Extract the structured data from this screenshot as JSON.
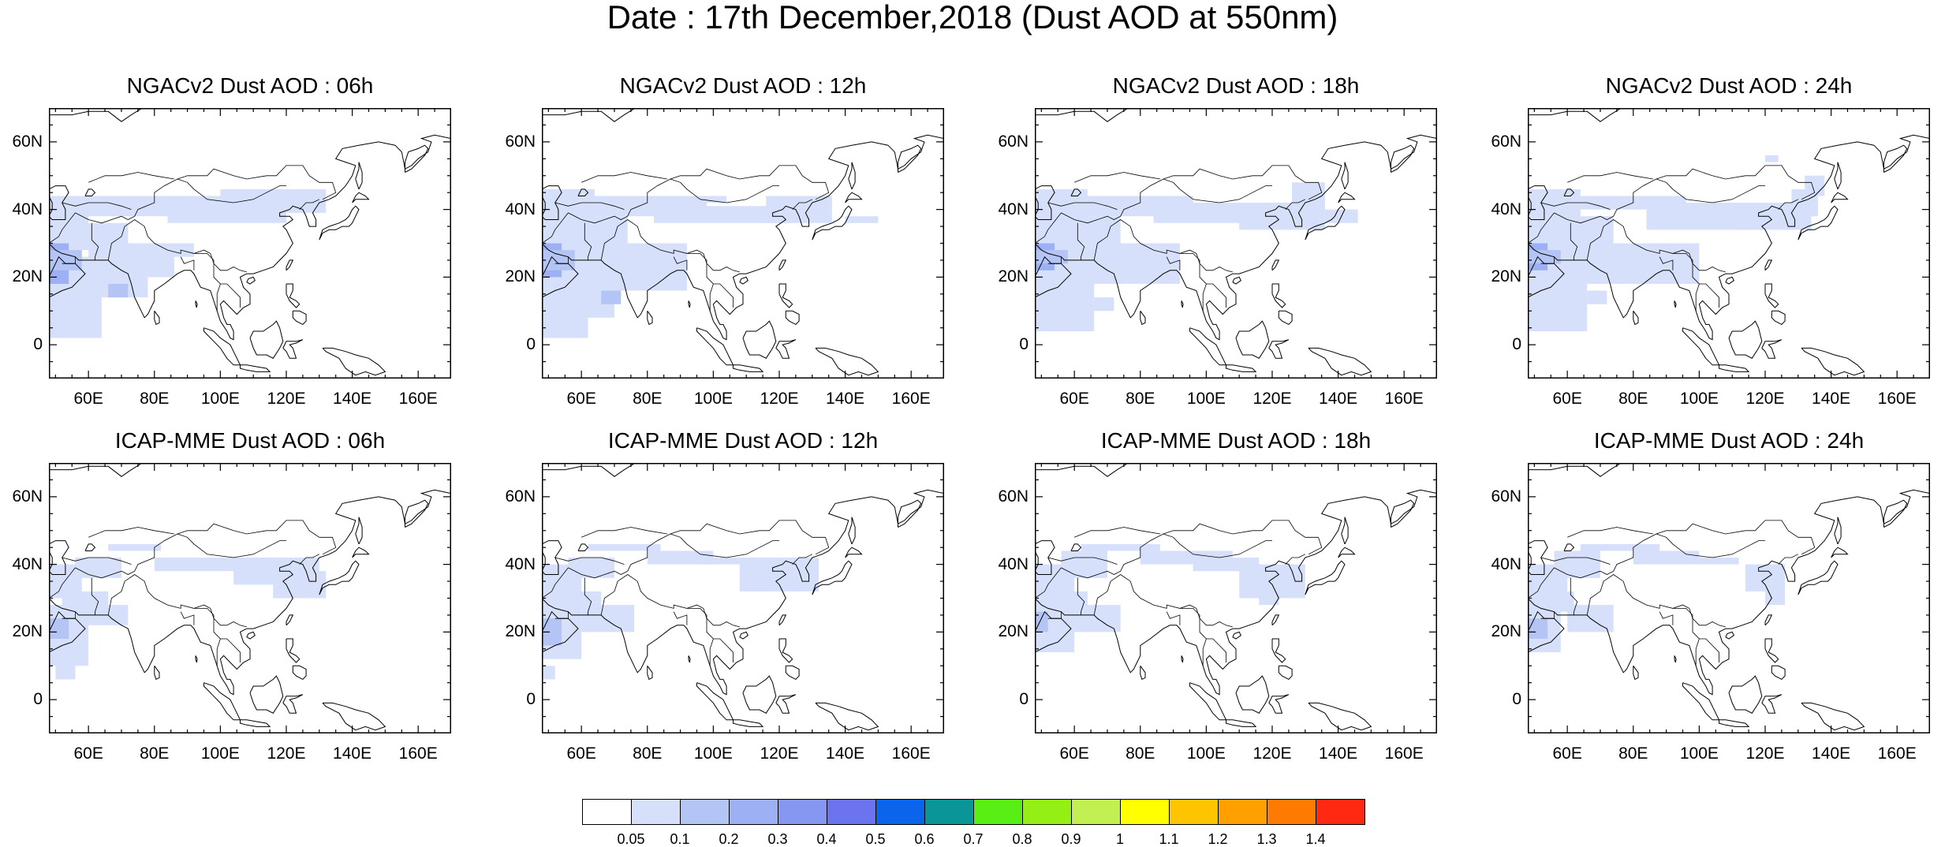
{
  "title": "Date : 17th December,2018 (Dust AOD at 550nm)",
  "y_ticks": [
    "60N",
    "40N",
    "20N",
    "0"
  ],
  "x_ticks": [
    "60E",
    "80E",
    "100E",
    "120E",
    "140E",
    "160E"
  ],
  "panels": [
    {
      "title": "NGACv2 Dust AOD : 06h",
      "model": "NGACv2",
      "hour": "06h"
    },
    {
      "title": "NGACv2 Dust AOD : 12h",
      "model": "NGACv2",
      "hour": "12h"
    },
    {
      "title": "NGACv2 Dust AOD : 18h",
      "model": "NGACv2",
      "hour": "18h"
    },
    {
      "title": "NGACv2 Dust AOD : 24h",
      "model": "NGACv2",
      "hour": "24h"
    },
    {
      "title": "ICAP-MME Dust AOD : 06h",
      "model": "ICAP-MME",
      "hour": "06h"
    },
    {
      "title": "ICAP-MME Dust AOD : 12h",
      "model": "ICAP-MME",
      "hour": "12h"
    },
    {
      "title": "ICAP-MME Dust AOD : 18h",
      "model": "ICAP-MME",
      "hour": "18h"
    },
    {
      "title": "ICAP-MME Dust AOD : 24h",
      "model": "ICAP-MME",
      "hour": "24h"
    }
  ],
  "colorbar": {
    "labels": [
      "0.05",
      "0.1",
      "0.2",
      "0.3",
      "0.4",
      "0.5",
      "0.6",
      "0.7",
      "0.8",
      "0.9",
      "1",
      "1.1",
      "1.2",
      "1.3",
      "1.4"
    ],
    "colors": [
      "#ffffff",
      "#d6e0fa",
      "#b4c4f5",
      "#9db0f3",
      "#8597f0",
      "#6b74ee",
      "#0a64ec",
      "#0a9696",
      "#5aef14",
      "#94ef14",
      "#c2ef52",
      "#ffff00",
      "#ffc400",
      "#ffa000",
      "#ff7a00",
      "#ff2810"
    ]
  },
  "colors": {
    "dust_light": "#d6e0fa",
    "dust_mid": "#b4c4f5",
    "dust_high": "#9db0f3"
  }
}
